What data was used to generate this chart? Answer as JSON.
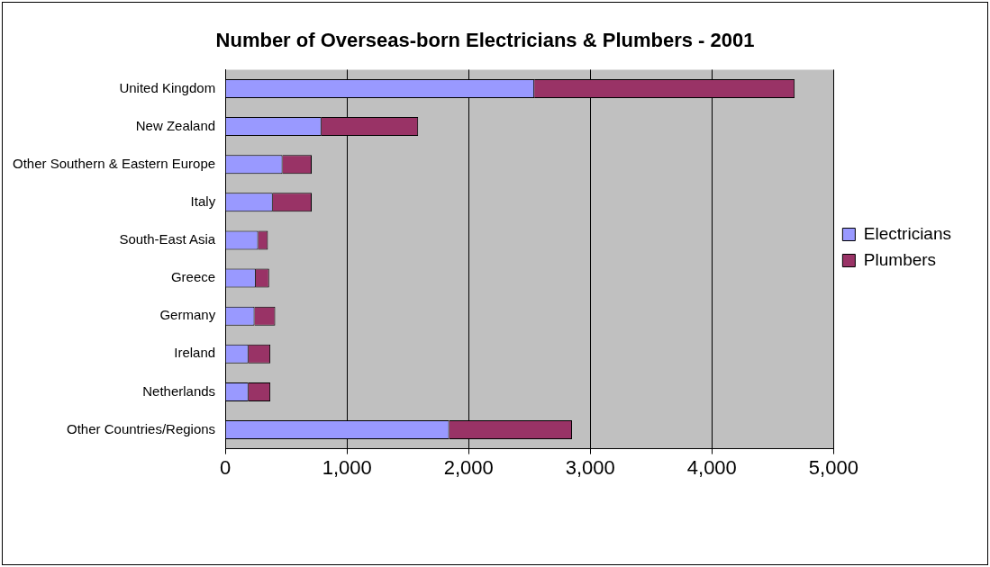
{
  "chart_data": {
    "type": "bar",
    "orientation": "horizontal",
    "stacked": true,
    "title": "Number of Overseas-born Electricians & Plumbers - 2001",
    "categories": [
      "United Kingdom",
      "New Zealand",
      "Other Southern & Eastern Europe",
      "Italy",
      "South-East Asia",
      "Greece",
      "Germany",
      "Ireland",
      "Netherlands",
      "Other Countries/Regions"
    ],
    "series": [
      {
        "name": "Electricians",
        "color": "#9999ff",
        "values": [
          2540,
          790,
          470,
          390,
          270,
          250,
          240,
          190,
          190,
          1840
        ]
      },
      {
        "name": "Plumbers",
        "color": "#993366",
        "values": [
          2140,
          795,
          240,
          320,
          80,
          110,
          170,
          180,
          180,
          1010
        ]
      }
    ],
    "xlim": [
      0,
      5000
    ],
    "xticks": [
      {
        "value": 0,
        "label": "0"
      },
      {
        "value": 1000,
        "label": "1,000"
      },
      {
        "value": 2000,
        "label": "2,000"
      },
      {
        "value": 3000,
        "label": "3,000"
      },
      {
        "value": 4000,
        "label": "4,000"
      },
      {
        "value": 5000,
        "label": "5,000"
      }
    ],
    "grid": "x",
    "legend": "right"
  }
}
